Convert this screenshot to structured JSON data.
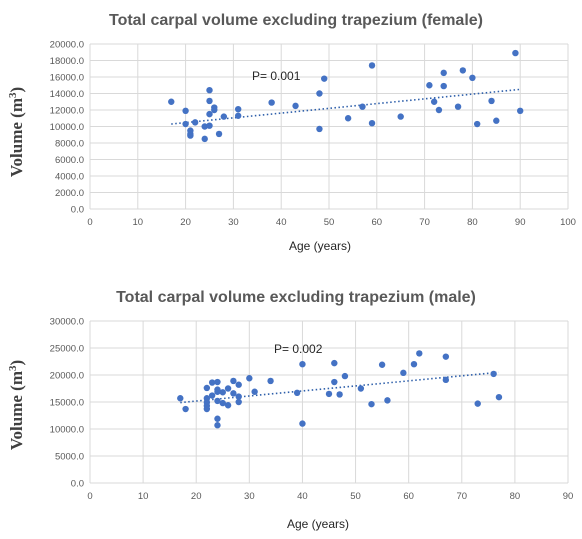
{
  "chart_data": [
    {
      "type": "scatter",
      "title": "Total carpal volume excluding trapezium (female)",
      "xlabel": "Age (years)",
      "ylabel_main": "Volume (m",
      "ylabel_sup": "3",
      "ylabel_close": ")",
      "annotation": "P= 0.001",
      "xlim": [
        0,
        100
      ],
      "ylim": [
        0,
        20000
      ],
      "x_ticks": [
        0,
        10,
        20,
        30,
        40,
        50,
        60,
        70,
        80,
        90,
        100
      ],
      "y_ticks": [
        0,
        2000,
        4000,
        6000,
        8000,
        10000,
        12000,
        14000,
        16000,
        18000,
        20000
      ],
      "x_tick_labels": [
        "0",
        "10",
        "20",
        "30",
        "40",
        "50",
        "60",
        "70",
        "80",
        "90",
        "100"
      ],
      "y_tick_labels": [
        "0.0",
        "2000.0",
        "4000.0",
        "6000.0",
        "8000.0",
        "10000.0",
        "12000.0",
        "14000.0",
        "16000.0",
        "18000.0",
        "20000.0"
      ],
      "marker_color": "#4472c4",
      "trend_color": "#2e5faa",
      "trendline": [
        [
          17,
          10300
        ],
        [
          90,
          14500
        ]
      ],
      "points": [
        [
          17,
          13000
        ],
        [
          20,
          11900
        ],
        [
          20,
          10300
        ],
        [
          21,
          9500
        ],
        [
          21,
          9100
        ],
        [
          21,
          8900
        ],
        [
          22,
          10500
        ],
        [
          24,
          8500
        ],
        [
          24,
          10000
        ],
        [
          25,
          10100
        ],
        [
          25,
          11500
        ],
        [
          25,
          13100
        ],
        [
          25,
          14400
        ],
        [
          26,
          12300
        ],
        [
          26,
          12000
        ],
        [
          27,
          9100
        ],
        [
          28,
          11200
        ],
        [
          31,
          12100
        ],
        [
          31,
          11300
        ],
        [
          38,
          12900
        ],
        [
          43,
          12500
        ],
        [
          48,
          14000
        ],
        [
          48,
          9700
        ],
        [
          49,
          15800
        ],
        [
          54,
          11000
        ],
        [
          57,
          12400
        ],
        [
          59,
          17400
        ],
        [
          59,
          10400
        ],
        [
          65,
          11200
        ],
        [
          71,
          15000
        ],
        [
          72,
          13000
        ],
        [
          73,
          12000
        ],
        [
          74,
          16500
        ],
        [
          74,
          14900
        ],
        [
          77,
          12400
        ],
        [
          78,
          16800
        ],
        [
          80,
          15900
        ],
        [
          81,
          10300
        ],
        [
          84,
          13100
        ],
        [
          85,
          10700
        ],
        [
          89,
          18900
        ],
        [
          90,
          11900
        ]
      ]
    },
    {
      "type": "scatter",
      "title": "Total carpal volume excluding trapezium  (male)",
      "xlabel": "Age (years)",
      "ylabel_main": "Volume (m",
      "ylabel_sup": "3",
      "ylabel_close": ")",
      "annotation": "P= 0.002",
      "xlim": [
        0,
        90
      ],
      "ylim": [
        0,
        30000
      ],
      "x_ticks": [
        0,
        10,
        20,
        30,
        40,
        50,
        60,
        70,
        80,
        90
      ],
      "y_ticks": [
        0,
        5000,
        10000,
        15000,
        20000,
        25000,
        30000
      ],
      "x_tick_labels": [
        "0",
        "10",
        "20",
        "30",
        "40",
        "50",
        "60",
        "70",
        "80",
        "90"
      ],
      "y_tick_labels": [
        "0.0",
        "5000.0",
        "10000.0",
        "15000.0",
        "20000.0",
        "25000.0",
        "30000.0"
      ],
      "marker_color": "#4472c4",
      "trend_color": "#2e5faa",
      "trendline": [
        [
          17,
          14900
        ],
        [
          77,
          20500
        ]
      ],
      "points": [
        [
          17,
          15700
        ],
        [
          18,
          13700
        ],
        [
          22,
          17600
        ],
        [
          22,
          15700
        ],
        [
          22,
          14900
        ],
        [
          22,
          14300
        ],
        [
          22,
          13700
        ],
        [
          23,
          18600
        ],
        [
          23,
          16200
        ],
        [
          24,
          18700
        ],
        [
          24,
          17300
        ],
        [
          24,
          16900
        ],
        [
          24,
          15200
        ],
        [
          24,
          11900
        ],
        [
          24,
          10700
        ],
        [
          25,
          16800
        ],
        [
          25,
          14800
        ],
        [
          26,
          14400
        ],
        [
          26,
          17500
        ],
        [
          27,
          18900
        ],
        [
          27,
          16600
        ],
        [
          28,
          18200
        ],
        [
          28,
          16000
        ],
        [
          28,
          15000
        ],
        [
          30,
          19400
        ],
        [
          31,
          16900
        ],
        [
          34,
          18900
        ],
        [
          39,
          16700
        ],
        [
          40,
          22000
        ],
        [
          40,
          11000
        ],
        [
          45,
          16500
        ],
        [
          46,
          22200
        ],
        [
          46,
          18700
        ],
        [
          47,
          16400
        ],
        [
          48,
          19800
        ],
        [
          51,
          17500
        ],
        [
          53,
          14600
        ],
        [
          55,
          21900
        ],
        [
          56,
          15300
        ],
        [
          59,
          20400
        ],
        [
          61,
          22000
        ],
        [
          62,
          24000
        ],
        [
          67,
          23400
        ],
        [
          67,
          19100
        ],
        [
          73,
          14700
        ],
        [
          76,
          20200
        ],
        [
          77,
          15900
        ]
      ]
    }
  ]
}
